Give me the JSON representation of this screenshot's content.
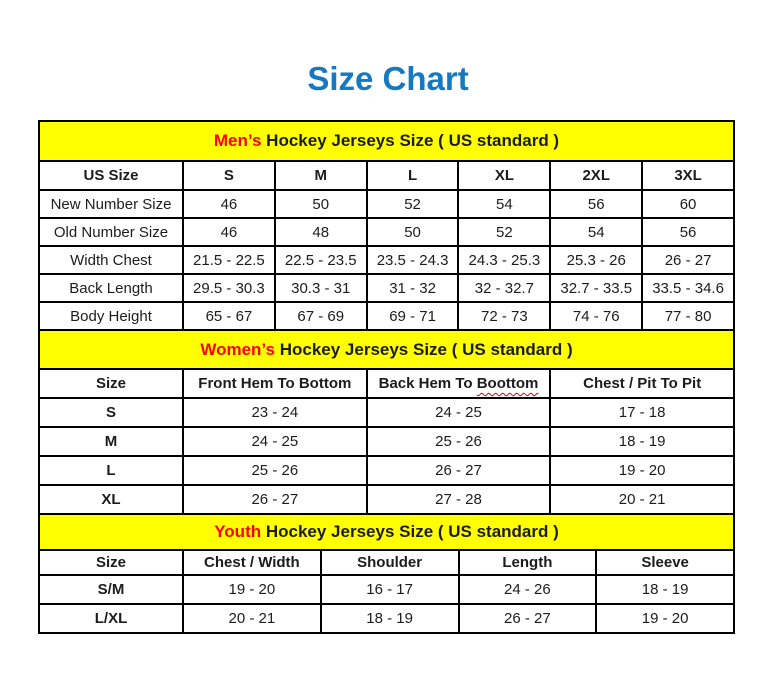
{
  "page": {
    "title": "Size Chart"
  },
  "colors": {
    "title_blue": "#1678be",
    "accent_red": "#ff0000",
    "banner_yellow": "#ffff00",
    "border_black": "#000000",
    "squiggle_red": "#dd0000"
  },
  "sections": [
    {
      "id": "men",
      "banner_accent": "Men’s",
      "banner_text": "Hockey Jerseys Size ( US standard )",
      "bold_row_labels": false,
      "columns": [
        "US Size",
        "S",
        "M",
        "L",
        "XL",
        "2XL",
        "3XL"
      ],
      "rows": [
        {
          "label": "New Number Size",
          "values": [
            "46",
            "50",
            "52",
            "54",
            "56",
            "60"
          ]
        },
        {
          "label": "Old Number Size",
          "values": [
            "46",
            "48",
            "50",
            "52",
            "54",
            "56"
          ]
        },
        {
          "label": "Width Chest",
          "values": [
            "21.5 - 22.5",
            "22.5 - 23.5",
            "23.5 - 24.3",
            "24.3 - 25.3",
            "25.3 - 26",
            "26 - 27"
          ]
        },
        {
          "label": "Back Length",
          "values": [
            "29.5 - 30.3",
            "30.3 - 31",
            "31 - 32",
            "32 - 32.7",
            "32.7 - 33.5",
            "33.5 - 34.6"
          ]
        },
        {
          "label": "Body Height",
          "values": [
            "65 - 67",
            "67 - 69",
            "69 - 71",
            "72 - 73",
            "74 - 76",
            "77 - 80"
          ]
        }
      ]
    },
    {
      "id": "women",
      "banner_accent": "Women’s",
      "banner_text": "Hockey Jerseys Size ( US standard )",
      "bold_row_labels": true,
      "columns": [
        "Size",
        "Front Hem To Bottom",
        {
          "text": "Back Hem To",
          "squiggle": "Boottom"
        },
        "Chest / Pit To Pit"
      ],
      "rows": [
        {
          "label": "S",
          "values": [
            "23 - 24",
            "24 - 25",
            "17 - 18"
          ]
        },
        {
          "label": "M",
          "values": [
            "24 - 25",
            "25 - 26",
            "18 - 19"
          ]
        },
        {
          "label": "L",
          "values": [
            "25 - 26",
            "26 - 27",
            "19 - 20"
          ]
        },
        {
          "label": "XL",
          "values": [
            "26 - 27",
            "27 - 28",
            "20 - 21"
          ]
        }
      ]
    },
    {
      "id": "youth",
      "banner_accent": "Youth",
      "banner_text": "Hockey Jerseys Size ( US standard )",
      "bold_row_labels": true,
      "columns": [
        "Size",
        "Chest / Width",
        "Shoulder",
        "Length",
        "Sleeve"
      ],
      "rows": [
        {
          "label": "S/M",
          "values": [
            "19 - 20",
            "16 - 17",
            "24 - 26",
            "18 - 19"
          ]
        },
        {
          "label": "L/XL",
          "values": [
            "20 - 21",
            "18 - 19",
            "26 - 27",
            "19 - 20"
          ]
        }
      ]
    }
  ]
}
